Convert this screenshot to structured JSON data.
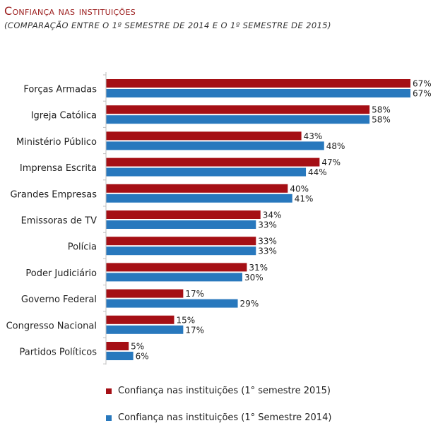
{
  "title": "Confiança nas instituições",
  "subtitle": "(COMPARAÇÃO ENTRE O 1º SEMESTRE DE 2014 E O 1º SEMESTRE DE 2015)",
  "colors": {
    "series_2015": "#a50f15",
    "series_2014": "#2878bd"
  },
  "legend": [
    {
      "label": "Confiança nas instituições (1° semestre 2015)",
      "color": "#a50f15"
    },
    {
      "label": "Confiança nas instituições (1° Semestre 2014)",
      "color": "#2878bd"
    }
  ],
  "chart_data": {
    "type": "bar",
    "orientation": "horizontal",
    "title": "Confiança nas instituições",
    "subtitle": "(COMPARAÇÃO ENTRE O 1º SEMESTRE DE 2014 E O 1º SEMESTRE DE 2015)",
    "categories": [
      "Forças Armadas",
      "Igreja Católica",
      "Ministério Público",
      "Imprensa Escrita",
      "Grandes Empresas",
      "Emissoras de TV",
      "Polícia",
      "Poder Judiciário",
      "Governo Federal",
      "Congresso Nacional",
      "Partidos Políticos"
    ],
    "series": [
      {
        "name": "Confiança nas instituições (1° semestre 2015)",
        "color": "#a50f15",
        "values": [
          67,
          58,
          43,
          47,
          40,
          34,
          33,
          31,
          17,
          15,
          5
        ]
      },
      {
        "name": "Confiança nas instituições (1° Semestre 2014)",
        "color": "#2878bd",
        "values": [
          67,
          58,
          48,
          44,
          41,
          33,
          33,
          30,
          29,
          17,
          6
        ]
      }
    ],
    "value_suffix": "%",
    "xlim": [
      0,
      67
    ],
    "grid": false,
    "legend_position": "bottom"
  }
}
